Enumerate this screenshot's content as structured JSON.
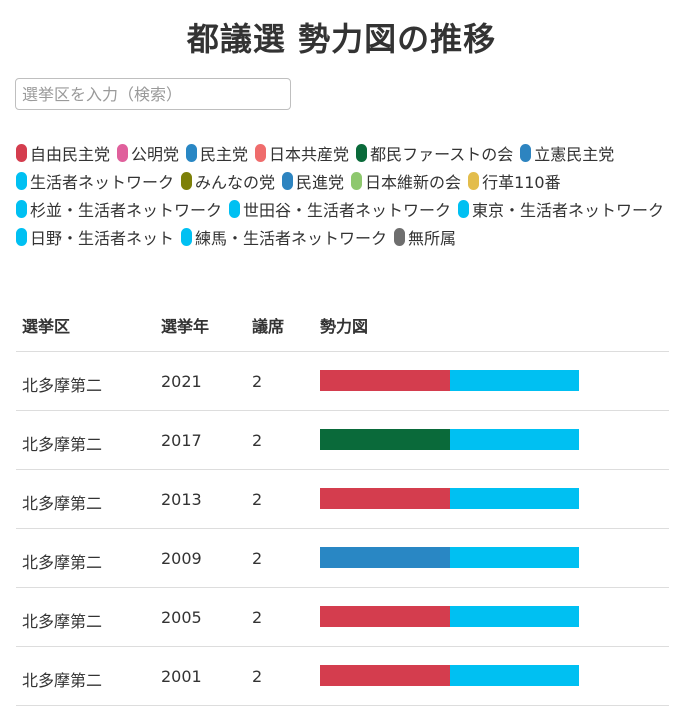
{
  "title": "都議選 勢力図の推移",
  "search": {
    "placeholder": "選挙区を入力（検索）"
  },
  "legend": [
    {
      "label": "自由民主党",
      "color": "#d43d4e"
    },
    {
      "label": "公明党",
      "color": "#e0609c"
    },
    {
      "label": "民主党",
      "color": "#2987c4"
    },
    {
      "label": "日本共産党",
      "color": "#ef6c6c"
    },
    {
      "label": "都民ファーストの会",
      "color": "#0a6a3a"
    },
    {
      "label": "立憲民主党",
      "color": "#2d84c0"
    },
    {
      "label": "生活者ネットワーク",
      "color": "#00c0f2"
    },
    {
      "label": "みんなの党",
      "color": "#7d8009"
    },
    {
      "label": "民進党",
      "color": "#2d84c0"
    },
    {
      "label": "日本維新の会",
      "color": "#8ec86e"
    },
    {
      "label": "行革110番",
      "color": "#e3bd4c"
    },
    {
      "label": "杉並・生活者ネットワーク",
      "color": "#00c0f2"
    },
    {
      "label": "世田谷・生活者ネットワーク",
      "color": "#00c0f2"
    },
    {
      "label": "東京・生活者ネットワーク",
      "color": "#00c0f2"
    },
    {
      "label": "日野・生活者ネット",
      "color": "#00c0f2"
    },
    {
      "label": "練馬・生活者ネットワーク",
      "color": "#00c0f2"
    },
    {
      "label": "無所属",
      "color": "#6e6e6e"
    }
  ],
  "table": {
    "headers": {
      "district": "選挙区",
      "year": "選挙年",
      "seats": "議席",
      "power": "勢力図"
    },
    "rows": [
      {
        "district": "北多摩第二",
        "year": "2021",
        "seats": "2",
        "segments": [
          {
            "party": "自由民主党",
            "color": "#d43d4e",
            "seats": 1
          },
          {
            "party": "生活者ネットワーク",
            "color": "#00c0f2",
            "seats": 1
          }
        ]
      },
      {
        "district": "北多摩第二",
        "year": "2017",
        "seats": "2",
        "segments": [
          {
            "party": "都民ファーストの会",
            "color": "#0a6a3a",
            "seats": 1
          },
          {
            "party": "生活者ネットワーク",
            "color": "#00c0f2",
            "seats": 1
          }
        ]
      },
      {
        "district": "北多摩第二",
        "year": "2013",
        "seats": "2",
        "segments": [
          {
            "party": "自由民主党",
            "color": "#d43d4e",
            "seats": 1
          },
          {
            "party": "生活者ネットワーク",
            "color": "#00c0f2",
            "seats": 1
          }
        ]
      },
      {
        "district": "北多摩第二",
        "year": "2009",
        "seats": "2",
        "segments": [
          {
            "party": "民主党",
            "color": "#2987c4",
            "seats": 1
          },
          {
            "party": "生活者ネットワーク",
            "color": "#00c0f2",
            "seats": 1
          }
        ]
      },
      {
        "district": "北多摩第二",
        "year": "2005",
        "seats": "2",
        "segments": [
          {
            "party": "自由民主党",
            "color": "#d43d4e",
            "seats": 1
          },
          {
            "party": "生活者ネットワーク",
            "color": "#00c0f2",
            "seats": 1
          }
        ]
      },
      {
        "district": "北多摩第二",
        "year": "2001",
        "seats": "2",
        "segments": [
          {
            "party": "自由民主党",
            "color": "#d43d4e",
            "seats": 1
          },
          {
            "party": "生活者ネットワーク",
            "color": "#00c0f2",
            "seats": 1
          }
        ]
      }
    ]
  }
}
